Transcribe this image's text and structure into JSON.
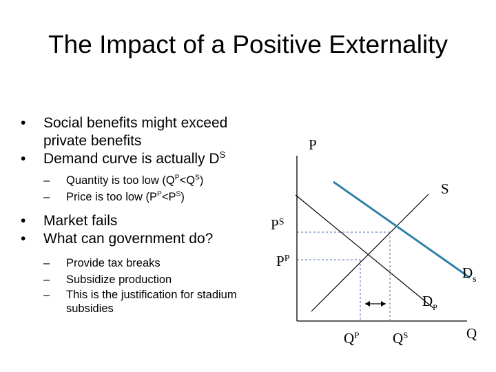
{
  "title": "The Impact of a Positive Externality",
  "bullets": {
    "b1": "Social benefits might exceed private benefits",
    "b2_text": "Demand curve is actually D",
    "b2_sup": "S",
    "b3_a": "Quantity is too low (Q",
    "b3_sup1": "P",
    "b3_b": "<Q",
    "b3_sup2": "S",
    "b3_c": ")",
    "b4_a": "Price is too low (P",
    "b4_sup1": "P",
    "b4_b": "<P",
    "b4_sup2": "S",
    "b4_c": ")",
    "b5": "Market fails",
    "b6": "What can government do?",
    "b7": "Provide tax breaks",
    "b8": "Subsidize production",
    "b9": "This is the justification for stadium subsidies",
    "bullet_glyph": "•",
    "dash_glyph": "–"
  },
  "diagram": {
    "axis_y": "P",
    "axis_x": "Q",
    "supply": "S",
    "ps_base": "P",
    "ps_sup": "S",
    "pp_base": "P",
    "pp_sup": "P",
    "qp_base": "Q",
    "qp_sup": "P",
    "qs_base": "Q",
    "qs_sup": "S",
    "ds_base": "D",
    "ds_sub": "s",
    "dp_base": "D",
    "dp_sub": "P",
    "social_demand_color": "#2f7fa8",
    "guide_color": "#4a6fb0"
  }
}
